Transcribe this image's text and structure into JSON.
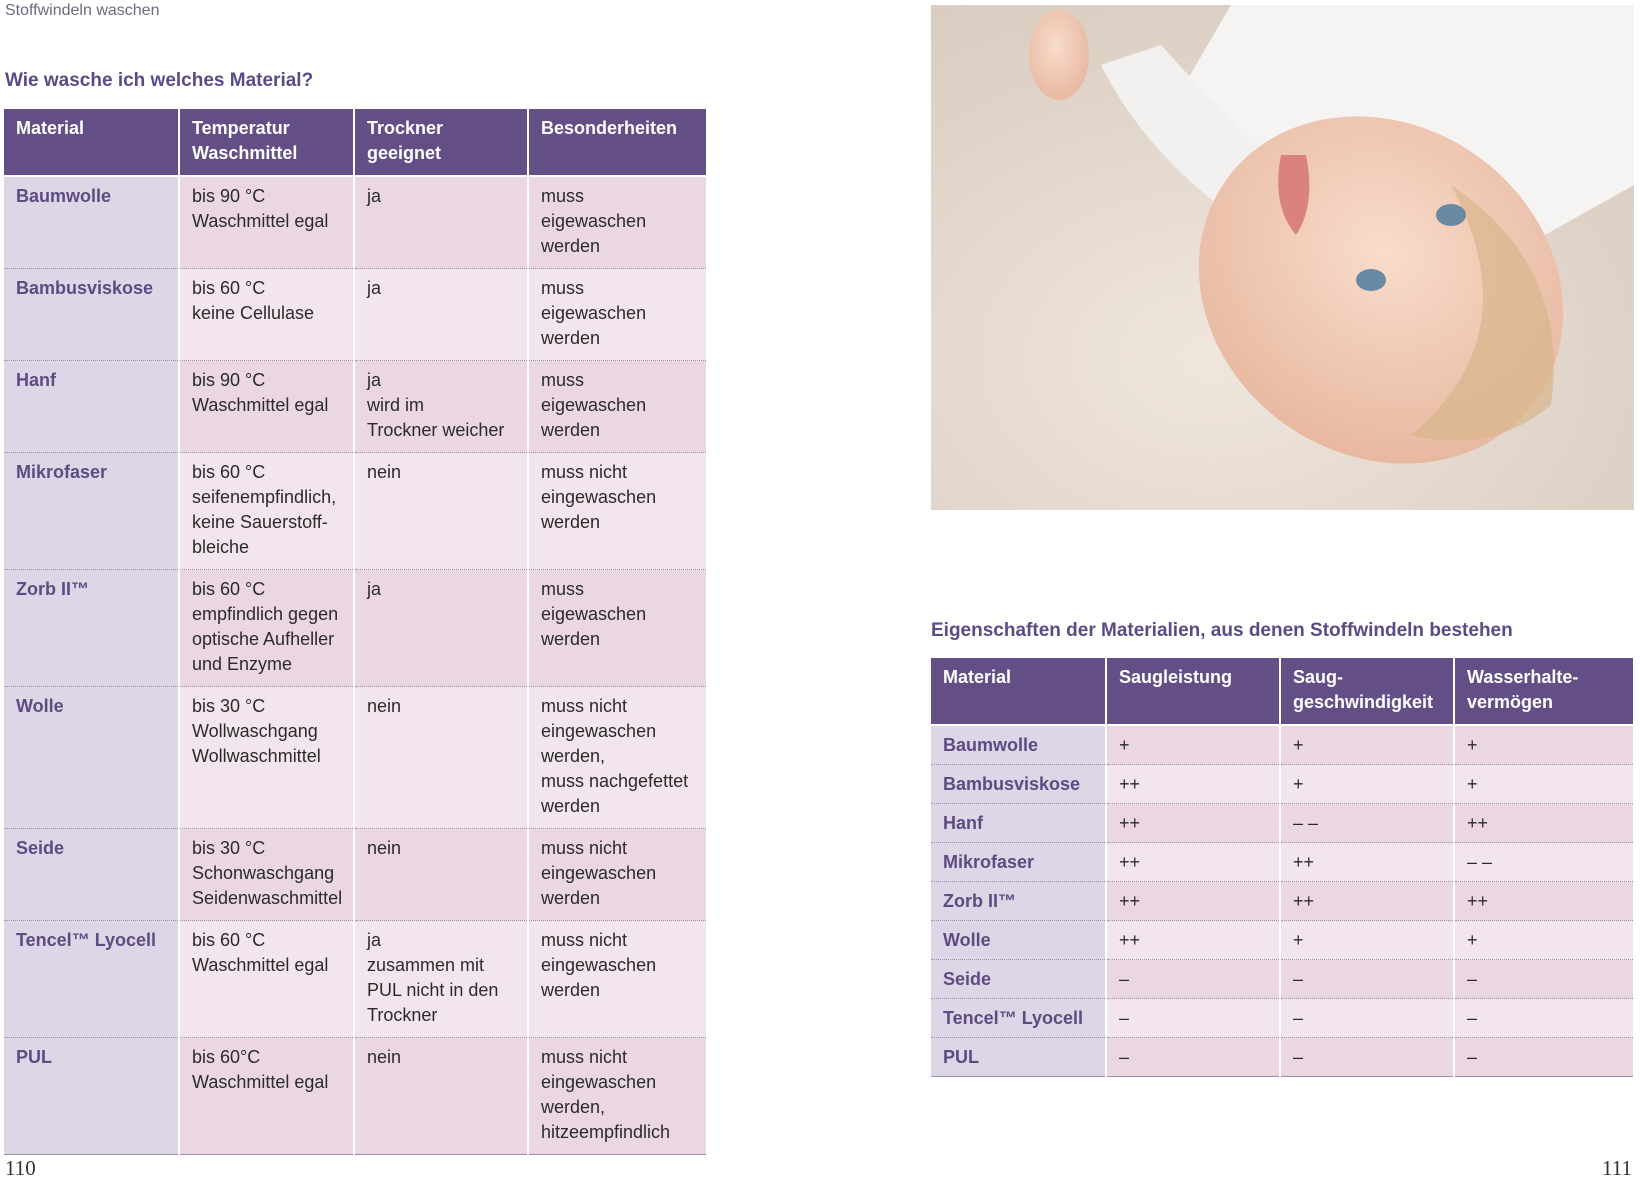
{
  "header": {
    "running_title": "Stoffwindeln waschen"
  },
  "left_table": {
    "title": "Wie wasche ich welches Material?",
    "columns": [
      "Material",
      "Temperatur\nWaschmittel",
      "Trockner\ngeeignet",
      "Besonderheiten"
    ],
    "rows": [
      [
        "Baumwolle",
        "bis 90 °C\nWaschmittel egal",
        "ja",
        "muss eigewaschen\nwerden"
      ],
      [
        "Bambusviskose",
        "bis 60 °C\nkeine Cellulase",
        "ja",
        "muss eigewaschen\nwerden"
      ],
      [
        "Hanf",
        "bis 90 °C\nWaschmittel egal",
        "ja\nwird im\nTrockner weicher",
        "muss\neigewaschen\nwerden"
      ],
      [
        "Mikrofaser",
        "bis 60 °C\nseifenempfindlich,\nkeine Sauerstoff-\nbleiche",
        "nein",
        "muss nicht\neingewaschen\nwerden"
      ],
      [
        "Zorb II™",
        "bis 60 °C\nempfindlich gegen\noptische Aufheller\nund Enzyme",
        "ja",
        "muss\neigewaschen\nwerden"
      ],
      [
        "Wolle",
        "bis 30 °C\nWollwaschgang\nWollwaschmittel",
        "nein",
        "muss nicht\neingewaschen\nwerden,\nmuss nachgefettet\nwerden"
      ],
      [
        "Seide",
        "bis 30 °C\nSchonwaschgang\nSeidenwaschmittel",
        "nein",
        "muss nicht\neingewaschen\nwerden"
      ],
      [
        "Tencel™ Lyocell",
        "bis 60 °C\nWaschmittel egal",
        "ja\nzusammen mit\nPUL nicht in den\nTrockner",
        "muss nicht\neingewaschen\nwerden"
      ],
      [
        "PUL",
        "bis 60°C\nWaschmittel egal",
        "nein",
        "muss nicht\neingewaschen\nwerden,\nhitzeempfindlich"
      ]
    ]
  },
  "right_table": {
    "title": "Eigenschaften der Materialien, aus denen Stoffwindeln bestehen",
    "columns": [
      "Material",
      "Saugleistung",
      "Saug-\ngeschwindigkeit",
      "Wasserhalte-\nvermögen"
    ],
    "rows": [
      [
        "Baumwolle",
        "+",
        "+",
        "+"
      ],
      [
        "Bambusviskose",
        "++",
        "+",
        "+"
      ],
      [
        "Hanf",
        "++",
        "– –",
        "++"
      ],
      [
        "Mikrofaser",
        "++",
        "++",
        "– –"
      ],
      [
        "Zorb II™",
        "++",
        "++",
        "++"
      ],
      [
        "Wolle",
        "++",
        "+",
        "+"
      ],
      [
        "Seide",
        "–",
        "–",
        "–"
      ],
      [
        "Tencel™ Lyocell",
        "–",
        "–",
        "–"
      ],
      [
        "PUL",
        "–",
        "–",
        "–"
      ]
    ]
  },
  "page_numbers": {
    "left": "110",
    "right": "111"
  }
}
